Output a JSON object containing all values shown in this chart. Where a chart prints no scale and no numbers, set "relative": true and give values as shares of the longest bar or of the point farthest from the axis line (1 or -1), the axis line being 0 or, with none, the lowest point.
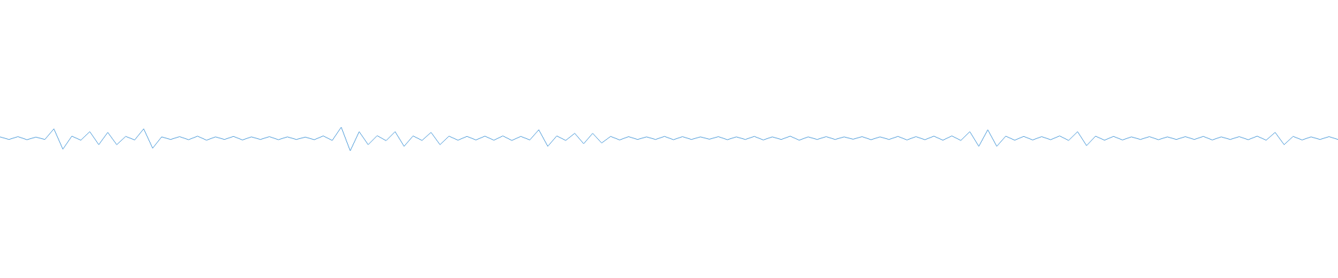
{
  "chart_data": {
    "type": "line",
    "relative": true,
    "color": "#5ba3dc",
    "grid": false,
    "legend": false,
    "marker": "none",
    "line_style": "solid",
    "categories": [
      null,
      null,
      null,
      null,
      null,
      null,
      null,
      null,
      null,
      null,
      null,
      null,
      null,
      null,
      null,
      null,
      null,
      null,
      null,
      null,
      null,
      null,
      null,
      null,
      null,
      null,
      null,
      null,
      null,
      null,
      null,
      null,
      null,
      null,
      null,
      null,
      null,
      null,
      null,
      null,
      null,
      null,
      null,
      null,
      null,
      null,
      null,
      null,
      null,
      null,
      null,
      null,
      null,
      null,
      null,
      null,
      null,
      null,
      null,
      null,
      null,
      null,
      null,
      null,
      null,
      null,
      null,
      null,
      null,
      null,
      null,
      null,
      null,
      null,
      null,
      null,
      null,
      null,
      null,
      null,
      null,
      null,
      null,
      null,
      null,
      null,
      null,
      null,
      null,
      null,
      null,
      null,
      null,
      null,
      null,
      null,
      null,
      null,
      null,
      null,
      null,
      null,
      null,
      null,
      null,
      null,
      null,
      null,
      null,
      null,
      null,
      null,
      null,
      null,
      null,
      null,
      null,
      null,
      null,
      null,
      null,
      null,
      null,
      null,
      null,
      null,
      null,
      null,
      null,
      null,
      null,
      null,
      null,
      null,
      null,
      null,
      null,
      null,
      null,
      null,
      null,
      null,
      null,
      null,
      null,
      null,
      null,
      null,
      null,
      null
    ],
    "values": [
      0.59,
      0.48,
      0.6,
      0.47,
      0.58,
      0.48,
      0.93,
      0.07,
      0.62,
      0.45,
      0.81,
      0.26,
      0.78,
      0.26,
      0.61,
      0.46,
      0.93,
      0.11,
      0.59,
      0.48,
      0.6,
      0.47,
      0.62,
      0.45,
      0.59,
      0.48,
      0.61,
      0.46,
      0.59,
      0.48,
      0.6,
      0.47,
      0.59,
      0.48,
      0.58,
      0.47,
      0.63,
      0.44,
      1,
      0,
      0.81,
      0.26,
      0.64,
      0.43,
      0.81,
      0.19,
      0.63,
      0.44,
      0.78,
      0.26,
      0.62,
      0.45,
      0.61,
      0.46,
      0.62,
      0.45,
      0.63,
      0.44,
      0.61,
      0.46,
      0.89,
      0.19,
      0.63,
      0.44,
      0.74,
      0.3,
      0.74,
      0.33,
      0.61,
      0.46,
      0.6,
      0.48,
      0.59,
      0.48,
      0.61,
      0.47,
      0.6,
      0.48,
      0.59,
      0.49,
      0.6,
      0.47,
      0.59,
      0.48,
      0.61,
      0.46,
      0.59,
      0.48,
      0.62,
      0.45,
      0.59,
      0.48,
      0.6,
      0.48,
      0.59,
      0.49,
      0.6,
      0.47,
      0.59,
      0.48,
      0.61,
      0.46,
      0.6,
      0.47,
      0.62,
      0.45,
      0.63,
      0.44,
      0.81,
      0.19,
      0.89,
      0.19,
      0.62,
      0.45,
      0.61,
      0.46,
      0.6,
      0.47,
      0.63,
      0.44,
      0.81,
      0.22,
      0.62,
      0.45,
      0.61,
      0.46,
      0.59,
      0.48,
      0.6,
      0.47,
      0.59,
      0.48,
      0.6,
      0.48,
      0.61,
      0.46,
      0.59,
      0.48,
      0.6,
      0.47,
      0.62,
      0.45,
      0.78,
      0.26,
      0.61,
      0.46,
      0.59,
      0.48,
      0.6,
      0.48
    ]
  }
}
